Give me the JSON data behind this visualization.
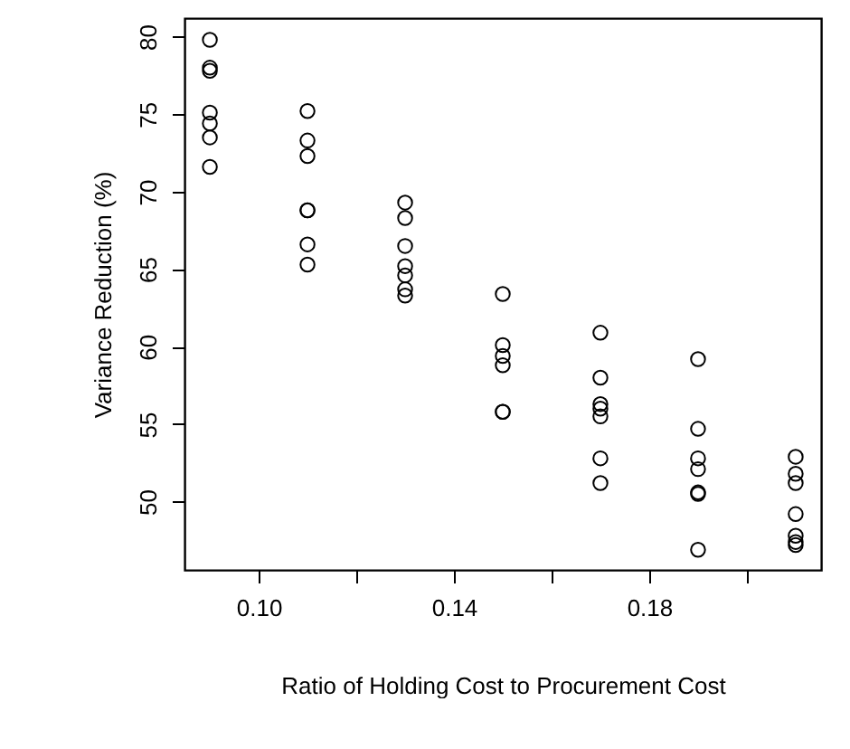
{
  "chart_data": {
    "type": "scatter",
    "xlabel": "Ratio of Holding Cost to Procurement Cost",
    "ylabel": "Variance Reduction (%)",
    "marker": "circle",
    "grid": false,
    "xlim": [
      0.0848,
      0.2152
    ],
    "xticks": [
      {
        "value": 0.1,
        "label": "0.10"
      },
      {
        "value": 0.12,
        "label": null
      },
      {
        "value": 0.14,
        "label": "0.14"
      },
      {
        "value": 0.16,
        "label": null
      },
      {
        "value": 0.18,
        "label": "0.18"
      },
      {
        "value": 0.2,
        "label": null
      }
    ],
    "ylim": [
      45.6,
      81.2
    ],
    "yticks": [
      50,
      55,
      60,
      65,
      70,
      75,
      80
    ],
    "series": [
      {
        "color": "#000000",
        "x": [
          0.09,
          0.09,
          0.09,
          0.09,
          0.09,
          0.09,
          0.09,
          0.11,
          0.11,
          0.11,
          0.11,
          0.11,
          0.11,
          0.11,
          0.13,
          0.13,
          0.13,
          0.13,
          0.13,
          0.13,
          0.13,
          0.15,
          0.15,
          0.15,
          0.15,
          0.15,
          0.15,
          0.17,
          0.17,
          0.17,
          0.17,
          0.17,
          0.17,
          0.17,
          0.19,
          0.19,
          0.19,
          0.19,
          0.19,
          0.19,
          0.19,
          0.21,
          0.21,
          0.21,
          0.21,
          0.21,
          0.21,
          0.21
        ],
        "values": [
          79.8,
          78.0,
          77.8,
          75.1,
          74.4,
          73.5,
          71.6,
          75.2,
          73.3,
          72.3,
          68.8,
          68.8,
          66.6,
          65.3,
          69.3,
          68.3,
          66.5,
          65.2,
          64.6,
          63.7,
          63.3,
          63.4,
          60.1,
          59.4,
          58.8,
          55.8,
          55.8,
          60.9,
          58.0,
          56.3,
          56.0,
          55.5,
          52.8,
          51.2,
          59.2,
          54.7,
          52.8,
          52.1,
          50.6,
          50.5,
          46.9,
          52.9,
          51.8,
          51.2,
          49.2,
          47.8,
          47.4,
          47.2
        ]
      }
    ]
  }
}
